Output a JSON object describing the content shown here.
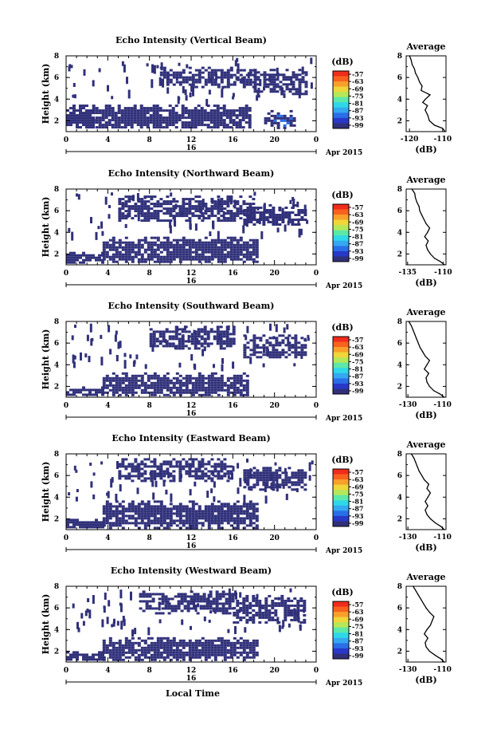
{
  "chart_data": [
    {
      "type": "heatmap",
      "title": "Echo Intensity (Vertical Beam)",
      "ylabel": "Height (km)",
      "yticks": [
        "2",
        "4",
        "6",
        "8"
      ],
      "ylim": [
        1,
        8
      ],
      "xticks": [
        "0",
        "4",
        "8",
        "12",
        "16",
        "20",
        "0"
      ],
      "xlim": [
        0,
        24
      ],
      "date_label": "16",
      "date_suffix": "Apr 2015",
      "colorbar": {
        "label": "(dB)",
        "ticks": [
          "-57",
          "-63",
          "-69",
          "-75",
          "-81",
          "-87",
          "-93",
          "-99"
        ]
      },
      "echo_layers_km_by_hour": [
        {
          "from_h": 0,
          "to_h": 2.5,
          "bottom_km": 1.3,
          "top_km": 3.5,
          "level_db": -99
        },
        {
          "from_h": 2.5,
          "to_h": 17.5,
          "bottom_km": 1.3,
          "top_km": 3.5,
          "level_db": -99
        },
        {
          "from_h": 9,
          "to_h": 18,
          "bottom_km": 5.2,
          "top_km": 7.0,
          "level_db": -99
        },
        {
          "from_h": 18,
          "to_h": 23,
          "bottom_km": 4.5,
          "top_km": 6.8,
          "level_db": -99
        },
        {
          "from_h": 19,
          "to_h": 22,
          "bottom_km": 1.4,
          "top_km": 3.0,
          "level_db": -93
        }
      ],
      "average_profile": {
        "title": "Average",
        "xlabel": "(dB)",
        "xticks": [
          "-120",
          "-110"
        ],
        "xlim": [
          -121,
          -109
        ],
        "yticks": [
          "2",
          "4",
          "6",
          "8"
        ],
        "ylim": [
          1,
          8
        ],
        "points": [
          [
            -109.3,
            1.0
          ],
          [
            -110.0,
            1.3
          ],
          [
            -112.5,
            1.6
          ],
          [
            -114.0,
            2.0
          ],
          [
            -114.5,
            2.5
          ],
          [
            -115.3,
            3.0
          ],
          [
            -114.6,
            3.4
          ],
          [
            -116.0,
            3.7
          ],
          [
            -115.2,
            4.0
          ],
          [
            -113.8,
            4.4
          ],
          [
            -116.5,
            4.8
          ],
          [
            -116.2,
            5.2
          ],
          [
            -117.0,
            5.6
          ],
          [
            -117.5,
            6.0
          ],
          [
            -118.2,
            6.4
          ],
          [
            -118.5,
            6.8
          ],
          [
            -119.2,
            7.2
          ],
          [
            -119.5,
            7.6
          ],
          [
            -120.0,
            8.0
          ]
        ]
      }
    },
    {
      "type": "heatmap",
      "title": "Echo Intensity (Northward Beam)",
      "ylabel": "Height (km)",
      "yticks": [
        "2",
        "4",
        "6",
        "8"
      ],
      "ylim": [
        1,
        8
      ],
      "xticks": [
        "0",
        "4",
        "8",
        "12",
        "16",
        "20",
        "0"
      ],
      "xlim": [
        0,
        24
      ],
      "date_label": "16",
      "date_suffix": "Apr 2015",
      "colorbar": {
        "label": "(dB)",
        "ticks": [
          "-57",
          "-63",
          "-69",
          "-75",
          "-81",
          "-87",
          "-93",
          "-99"
        ]
      },
      "echo_layers_km_by_hour": [
        {
          "from_h": 0,
          "to_h": 3.5,
          "bottom_km": 1.2,
          "top_km": 2.2,
          "level_db": -99
        },
        {
          "from_h": 3.5,
          "to_h": 18.2,
          "bottom_km": 1.2,
          "top_km": 3.6,
          "level_db": -99
        },
        {
          "from_h": 5,
          "to_h": 18,
          "bottom_km": 5.0,
          "top_km": 7.4,
          "level_db": -99
        },
        {
          "from_h": 17,
          "to_h": 23,
          "bottom_km": 4.8,
          "top_km": 6.6,
          "level_db": -99
        }
      ],
      "average_profile": {
        "title": "Average",
        "xlabel": "(dB)",
        "xticks": [
          "-135",
          "-110"
        ],
        "xlim": [
          -136,
          -108
        ],
        "yticks": [
          "2",
          "4",
          "6",
          "8"
        ],
        "ylim": [
          1,
          8
        ],
        "points": [
          [
            -109.0,
            1.0
          ],
          [
            -112.0,
            1.3
          ],
          [
            -116.0,
            1.6
          ],
          [
            -119.0,
            2.0
          ],
          [
            -121.0,
            2.4
          ],
          [
            -122.0,
            2.8
          ],
          [
            -120.5,
            3.2
          ],
          [
            -123.0,
            3.6
          ],
          [
            -121.0,
            4.0
          ],
          [
            -119.5,
            4.4
          ],
          [
            -122.0,
            4.8
          ],
          [
            -123.5,
            5.2
          ],
          [
            -125.0,
            5.6
          ],
          [
            -126.5,
            6.0
          ],
          [
            -127.0,
            6.4
          ],
          [
            -128.5,
            6.8
          ],
          [
            -129.5,
            7.2
          ],
          [
            -130.0,
            7.6
          ],
          [
            -132.0,
            8.0
          ]
        ]
      }
    },
    {
      "type": "heatmap",
      "title": "Echo Intensity (Southward Beam)",
      "ylabel": "Height (km)",
      "yticks": [
        "2",
        "4",
        "6",
        "8"
      ],
      "ylim": [
        1,
        8
      ],
      "xticks": [
        "0",
        "4",
        "8",
        "12",
        "16",
        "20",
        "0"
      ],
      "xlim": [
        0,
        24
      ],
      "date_label": "16",
      "date_suffix": "Apr 2015",
      "colorbar": {
        "label": "(dB)",
        "ticks": [
          "-57",
          "-63",
          "-69",
          "-75",
          "-81",
          "-87",
          "-93",
          "-99"
        ]
      },
      "echo_layers_km_by_hour": [
        {
          "from_h": 0,
          "to_h": 3.5,
          "bottom_km": 1.2,
          "top_km": 2.0,
          "level_db": -99
        },
        {
          "from_h": 3.5,
          "to_h": 17.5,
          "bottom_km": 1.2,
          "top_km": 3.3,
          "level_db": -99
        },
        {
          "from_h": 8,
          "to_h": 16,
          "bottom_km": 5.6,
          "top_km": 7.6,
          "level_db": -99
        },
        {
          "from_h": 17,
          "to_h": 23,
          "bottom_km": 4.6,
          "top_km": 6.8,
          "level_db": -99
        }
      ],
      "average_profile": {
        "title": "Average",
        "xlabel": "(dB)",
        "xticks": [
          "-130",
          "-110"
        ],
        "xlim": [
          -131,
          -108
        ],
        "yticks": [
          "2",
          "4",
          "6",
          "8"
        ],
        "ylim": [
          1,
          8
        ],
        "points": [
          [
            -109.0,
            1.0
          ],
          [
            -111.5,
            1.3
          ],
          [
            -115.0,
            1.6
          ],
          [
            -117.5,
            2.0
          ],
          [
            -119.0,
            2.4
          ],
          [
            -119.5,
            2.8
          ],
          [
            -118.0,
            3.2
          ],
          [
            -120.5,
            3.6
          ],
          [
            -119.0,
            4.0
          ],
          [
            -117.5,
            4.4
          ],
          [
            -120.0,
            4.8
          ],
          [
            -121.5,
            5.2
          ],
          [
            -123.0,
            5.6
          ],
          [
            -124.0,
            6.0
          ],
          [
            -125.0,
            6.4
          ],
          [
            -126.0,
            6.8
          ],
          [
            -127.0,
            7.2
          ],
          [
            -128.0,
            7.6
          ],
          [
            -129.5,
            8.0
          ]
        ]
      }
    },
    {
      "type": "heatmap",
      "title": "Echo Intensity (Eastward Beam)",
      "ylabel": "Height (km)",
      "yticks": [
        "2",
        "4",
        "6",
        "8"
      ],
      "ylim": [
        1,
        8
      ],
      "xticks": [
        "0",
        "4",
        "8",
        "12",
        "16",
        "20",
        "0"
      ],
      "xlim": [
        0,
        24
      ],
      "date_label": "16",
      "date_suffix": "Apr 2015",
      "colorbar": {
        "label": "(dB)",
        "ticks": [
          "-57",
          "-63",
          "-69",
          "-75",
          "-81",
          "-87",
          "-93",
          "-99"
        ]
      },
      "echo_layers_km_by_hour": [
        {
          "from_h": 0,
          "to_h": 3.5,
          "bottom_km": 1.2,
          "top_km": 2.0,
          "level_db": -99
        },
        {
          "from_h": 3.5,
          "to_h": 18.2,
          "bottom_km": 1.2,
          "top_km": 3.7,
          "level_db": -99
        },
        {
          "from_h": 5,
          "to_h": 16,
          "bottom_km": 5.5,
          "top_km": 7.6,
          "level_db": -99
        },
        {
          "from_h": 17,
          "to_h": 23,
          "bottom_km": 4.8,
          "top_km": 6.8,
          "level_db": -99
        }
      ],
      "average_profile": {
        "title": "Average",
        "xlabel": "(dB)",
        "xticks": [
          "-130",
          "-110"
        ],
        "xlim": [
          -131,
          -108
        ],
        "yticks": [
          "2",
          "4",
          "6",
          "8"
        ],
        "ylim": [
          1,
          8
        ],
        "points": [
          [
            -109.0,
            1.0
          ],
          [
            -111.0,
            1.3
          ],
          [
            -114.0,
            1.6
          ],
          [
            -117.0,
            2.0
          ],
          [
            -119.0,
            2.4
          ],
          [
            -120.0,
            2.8
          ],
          [
            -118.5,
            3.2
          ],
          [
            -120.0,
            3.6
          ],
          [
            -118.5,
            4.0
          ],
          [
            -117.0,
            4.4
          ],
          [
            -119.0,
            4.8
          ],
          [
            -118.0,
            5.2
          ],
          [
            -120.5,
            5.6
          ],
          [
            -122.0,
            6.0
          ],
          [
            -123.5,
            6.4
          ],
          [
            -124.5,
            6.8
          ],
          [
            -125.5,
            7.2
          ],
          [
            -126.5,
            7.6
          ],
          [
            -128.0,
            8.0
          ]
        ]
      }
    },
    {
      "type": "heatmap",
      "title": "Echo Intensity (Westward Beam)",
      "ylabel": "Height (km)",
      "yticks": [
        "2",
        "4",
        "6",
        "8"
      ],
      "ylim": [
        1,
        8
      ],
      "xticks": [
        "0",
        "4",
        "8",
        "12",
        "16",
        "20",
        "0"
      ],
      "xlim": [
        0,
        24
      ],
      "xlabel": "Local Time",
      "date_label": "16",
      "date_suffix": "Apr 2015",
      "colorbar": {
        "label": "(dB)",
        "ticks": [
          "-57",
          "-63",
          "-69",
          "-75",
          "-81",
          "-87",
          "-93",
          "-99"
        ]
      },
      "echo_layers_km_by_hour": [
        {
          "from_h": 0,
          "to_h": 3.5,
          "bottom_km": 1.2,
          "top_km": 2.0,
          "level_db": -99
        },
        {
          "from_h": 3.5,
          "to_h": 18.2,
          "bottom_km": 1.2,
          "top_km": 3.3,
          "level_db": -99
        },
        {
          "from_h": 7,
          "to_h": 16,
          "bottom_km": 5.6,
          "top_km": 7.6,
          "level_db": -99
        },
        {
          "from_h": 16,
          "to_h": 23,
          "bottom_km": 4.6,
          "top_km": 7.2,
          "level_db": -99
        }
      ],
      "average_profile": {
        "title": "Average",
        "xlabel": "(dB)",
        "xticks": [
          "-130",
          "-110"
        ],
        "xlim": [
          -131,
          -108
        ],
        "yticks": [
          "2",
          "4",
          "6",
          "8"
        ],
        "ylim": [
          1,
          8
        ],
        "points": [
          [
            -109.0,
            1.0
          ],
          [
            -111.0,
            1.3
          ],
          [
            -114.0,
            1.6
          ],
          [
            -117.5,
            2.0
          ],
          [
            -119.5,
            2.4
          ],
          [
            -120.0,
            2.8
          ],
          [
            -118.5,
            3.2
          ],
          [
            -120.5,
            3.6
          ],
          [
            -119.0,
            4.0
          ],
          [
            -117.0,
            4.4
          ],
          [
            -116.0,
            4.8
          ],
          [
            -115.0,
            5.2
          ],
          [
            -117.5,
            5.6
          ],
          [
            -119.5,
            6.0
          ],
          [
            -121.0,
            6.4
          ],
          [
            -122.5,
            6.8
          ],
          [
            -124.0,
            7.2
          ],
          [
            -125.5,
            7.6
          ],
          [
            -127.0,
            8.0
          ]
        ]
      }
    }
  ],
  "colors": {
    "echo": "#30307a",
    "colorbar": [
      "#f02c1c",
      "#f8621e",
      "#f8a02a",
      "#f0d63a",
      "#b4e85a",
      "#5ce8a8",
      "#2ed8e8",
      "#34a8f0",
      "#2a6ee8",
      "#2838c8",
      "#30307a"
    ],
    "axis": "#000000"
  }
}
